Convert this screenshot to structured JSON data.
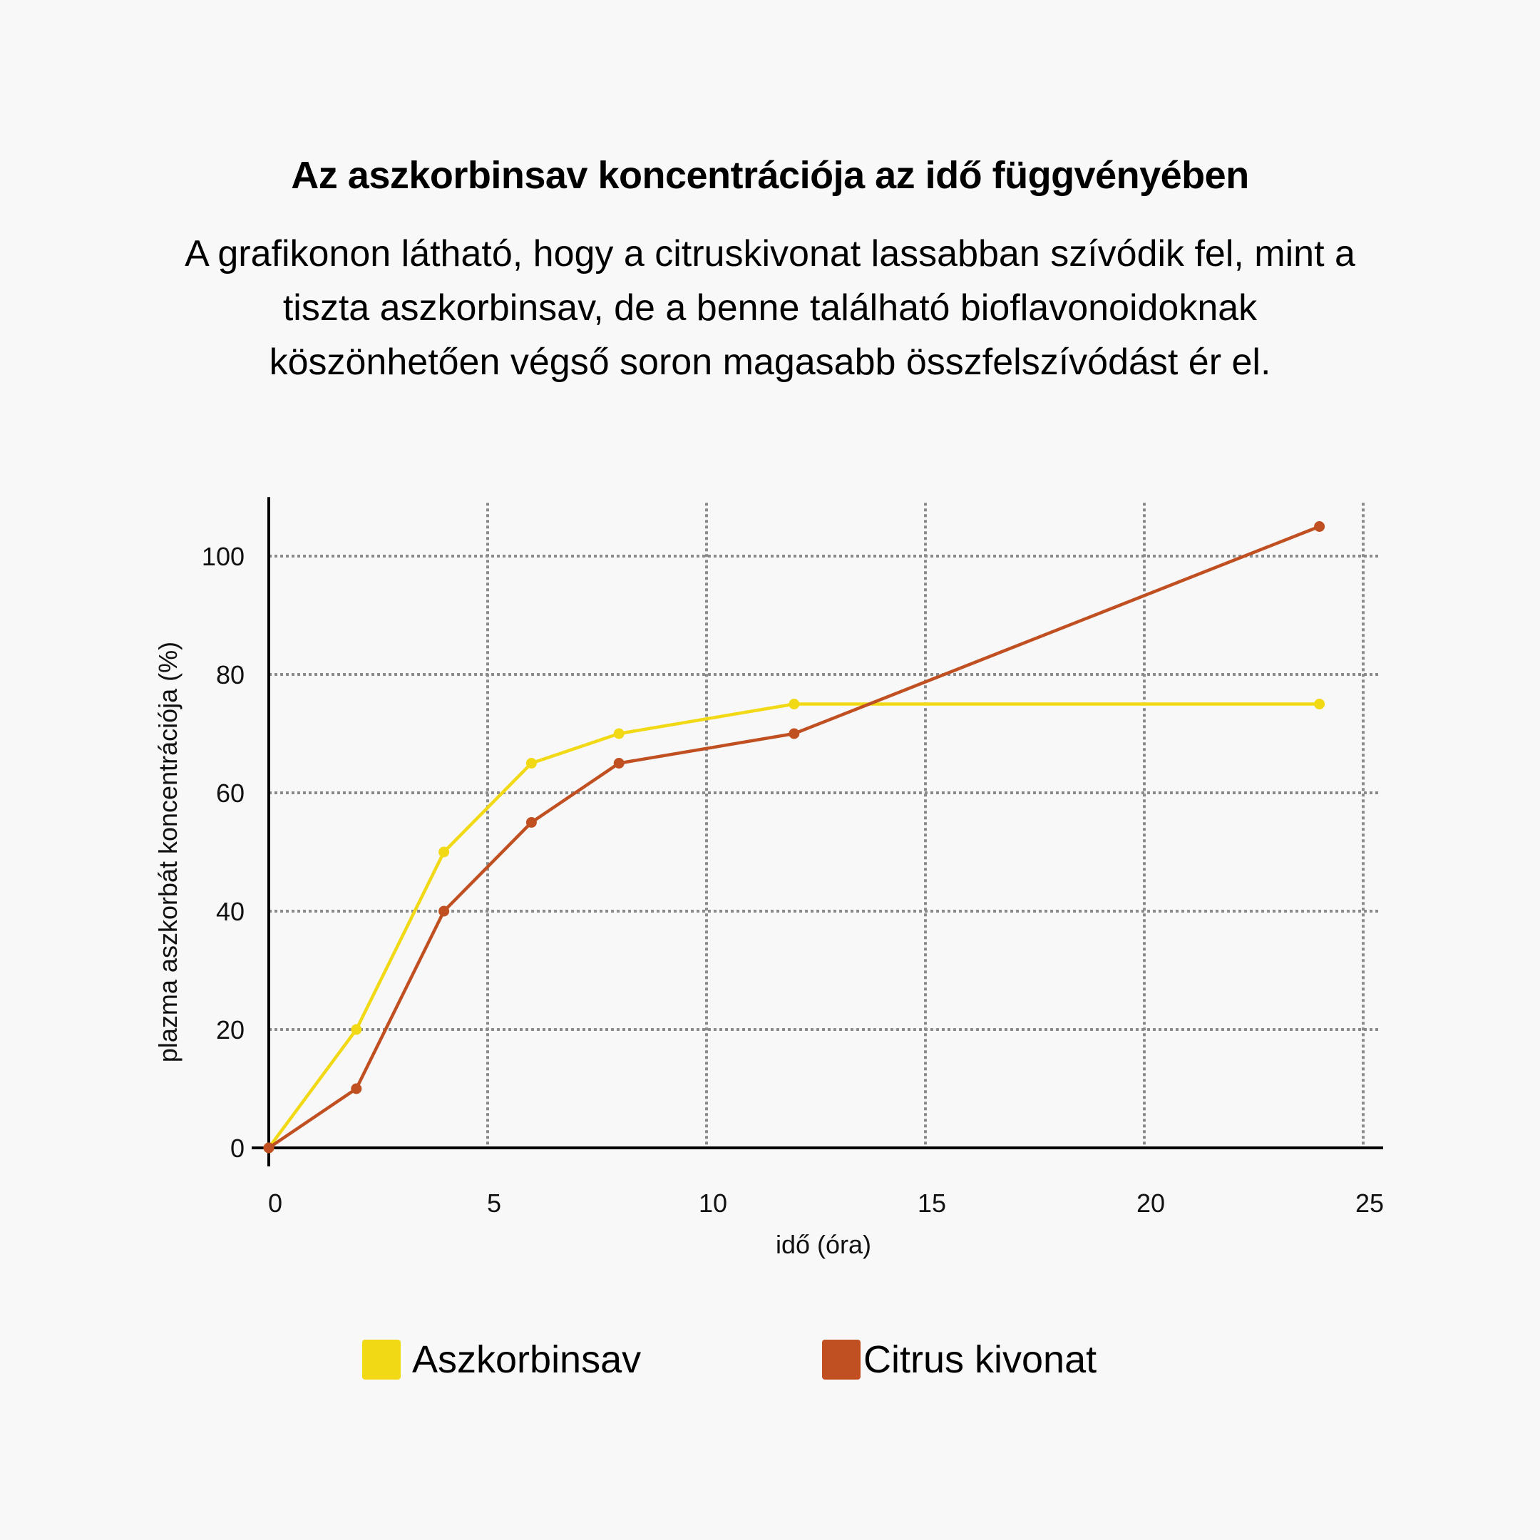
{
  "title": "Az aszkorbinsav koncentrációja az idő függvényében",
  "subtitle": "A grafikonon látható, hogy a citruskivonat lassabban szívódik fel, mint a tiszta aszkorbinsav, de a benne található bioflavonoidoknak köszönhetően végső soron magasabb összfelszívódást ér el.",
  "legend": [
    {
      "label": "Aszkorbinsav",
      "color": "#f2d915"
    },
    {
      "label": "Citrus kivonat",
      "color": "#c05021"
    }
  ],
  "chart_data": {
    "type": "line",
    "title": "Az aszkorbinsav koncentrációja az idő függvényében",
    "xlabel": "idő (óra)",
    "ylabel": "plazma aszkorbát koncentrációja (%)",
    "xlim": [
      0,
      25
    ],
    "ylim": [
      0,
      109
    ],
    "xticks": [
      0,
      5,
      10,
      15,
      20,
      25
    ],
    "yticks": [
      0,
      20,
      40,
      60,
      80,
      100
    ],
    "grid": true,
    "grid_style": "dotted",
    "legend_position": "bottom",
    "series": [
      {
        "name": "Aszkorbinsav",
        "color": "#f2d915",
        "x": [
          0,
          2,
          4,
          6,
          8,
          12,
          24
        ],
        "values": [
          0,
          20,
          50,
          65,
          70,
          75,
          75
        ]
      },
      {
        "name": "Citrus kivonat",
        "color": "#c05021",
        "x": [
          0,
          2,
          4,
          6,
          8,
          12,
          24
        ],
        "values": [
          0,
          10,
          40,
          55,
          65,
          70,
          105
        ]
      }
    ]
  }
}
